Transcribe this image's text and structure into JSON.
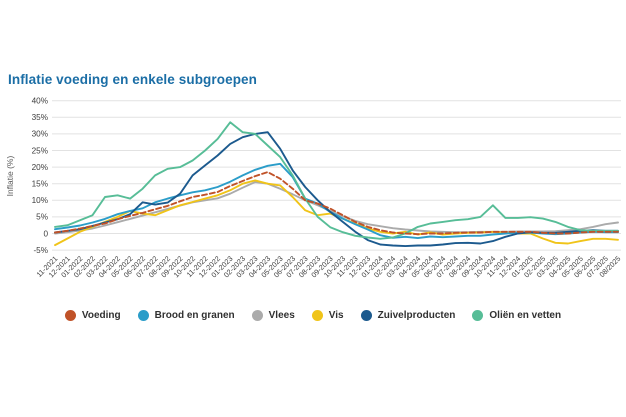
{
  "header": {
    "title": "Inflatie voeding en enkele subgroepen"
  },
  "chart_data": {
    "type": "line",
    "title": "Inflatie voeding en enkele subgroepen",
    "ylabel": "Inflatie (%)",
    "ylim": [
      -5,
      40
    ],
    "ytick_step": 5,
    "yticks": [
      40,
      35,
      30,
      25,
      20,
      15,
      10,
      5,
      0,
      -5
    ],
    "ytick_labels": [
      "40%",
      "35%",
      "30%",
      "25%",
      "20%",
      "15%",
      "10%",
      "5%",
      "0",
      "-5%"
    ],
    "grid": true,
    "legend_position": "bottom",
    "x": [
      "11-2021",
      "12-2021",
      "01-2022",
      "02-2022",
      "03-2022",
      "04-2022",
      "05-2022",
      "06-2022",
      "07-2022",
      "08-2022",
      "09-2022",
      "10-2022",
      "11-2022",
      "12-2022",
      "01-2023",
      "02-2023",
      "03-2023",
      "04-2023",
      "05-2023",
      "06-2023",
      "07-2023",
      "08-2023",
      "09-2023",
      "10-2023",
      "11-2023",
      "12-2023",
      "01-2024",
      "02-2024",
      "03-2024",
      "04-2024",
      "05-2024",
      "06-2024",
      "07-2024",
      "08-2024",
      "09-2024",
      "10-2024",
      "11-2024",
      "12-2024",
      "01-2025",
      "02-2025",
      "03-2025",
      "04-2025",
      "05-2025",
      "06-2025",
      "07-2025",
      "08/2025"
    ],
    "series": [
      {
        "name": "Voeding",
        "color": "#c05228",
        "style": "dashed",
        "values": [
          0.3,
          0.8,
          1.5,
          2.3,
          3.0,
          4.3,
          5.3,
          6.2,
          7.3,
          8.3,
          9.7,
          11.0,
          11.7,
          12.5,
          14.3,
          15.8,
          17.3,
          18.5,
          16.5,
          13.5,
          10.0,
          9.0,
          7.5,
          5.5,
          3.5,
          2.0,
          1.0,
          0.3,
          0.0,
          -0.2,
          0.0,
          0.0,
          0.2,
          0.3,
          0.3,
          0.5,
          0.5,
          0.5,
          0.5,
          0.2,
          0.0,
          0.0,
          0.3,
          0.5,
          0.5,
          0.5
        ]
      },
      {
        "name": "Brood en granen",
        "color": "#2b9dc9",
        "style": "solid",
        "values": [
          1.3,
          1.8,
          2.4,
          3.3,
          4.4,
          5.8,
          6.8,
          7.6,
          9.4,
          10.5,
          11.5,
          12.4,
          13.0,
          14.0,
          15.6,
          17.5,
          19.2,
          20.4,
          21.0,
          17.0,
          10.5,
          9.0,
          6.5,
          4.5,
          2.8,
          1.2,
          -0.5,
          -1.3,
          -1.0,
          -1.4,
          -0.9,
          -1.1,
          -0.9,
          -0.7,
          -0.7,
          -0.3,
          0.0,
          0.2,
          0.3,
          0.0,
          -0.2,
          0.0,
          0.3,
          0.5,
          0.4,
          0.4
        ]
      },
      {
        "name": "Vlees",
        "color": "#ababab",
        "style": "solid",
        "values": [
          0.0,
          0.4,
          0.9,
          1.5,
          2.4,
          3.4,
          4.4,
          5.4,
          6.4,
          7.4,
          8.4,
          9.4,
          10.0,
          10.6,
          12.0,
          13.8,
          15.5,
          15.0,
          13.5,
          11.8,
          10.0,
          8.5,
          6.8,
          5.2,
          3.8,
          2.8,
          2.2,
          1.6,
          1.2,
          0.9,
          0.6,
          0.5,
          0.4,
          0.4,
          0.5,
          0.5,
          0.5,
          0.6,
          0.6,
          0.6,
          0.7,
          1.0,
          1.3,
          2.0,
          2.8,
          3.3
        ]
      },
      {
        "name": "Vis",
        "color": "#f0c419",
        "style": "solid",
        "values": [
          -3.5,
          -1.5,
          0.5,
          2.0,
          3.5,
          5.0,
          6.8,
          6.0,
          5.5,
          7.0,
          8.5,
          9.5,
          10.5,
          11.5,
          13.0,
          15.0,
          16.0,
          15.0,
          14.5,
          11.0,
          7.0,
          5.5,
          6.0,
          4.5,
          3.0,
          1.5,
          0.5,
          0.0,
          0.5,
          -0.3,
          0.3,
          -0.3,
          0.0,
          0.2,
          0.3,
          0.5,
          0.2,
          0.0,
          0.0,
          -1.5,
          -2.8,
          -3.0,
          -2.3,
          -1.6,
          -1.6,
          -1.9
        ]
      },
      {
        "name": "Zuivelproducten",
        "color": "#1c5a8e",
        "style": "solid",
        "values": [
          0.3,
          0.8,
          1.3,
          2.3,
          3.3,
          4.3,
          5.8,
          9.4,
          8.7,
          9.3,
          12.0,
          17.5,
          20.5,
          23.5,
          27.0,
          29.0,
          30.0,
          30.5,
          25.5,
          19.0,
          14.0,
          10.0,
          6.5,
          3.5,
          0.5,
          -2.0,
          -3.3,
          -3.6,
          -3.8,
          -3.6,
          -3.6,
          -3.3,
          -2.9,
          -2.8,
          -3.0,
          -2.3,
          -1.0,
          0.0,
          0.4,
          0.2,
          0.2,
          0.5,
          0.8,
          1.0,
          0.8,
          0.8
        ]
      },
      {
        "name": "Oliën en vetten",
        "color": "#57bd97",
        "style": "solid",
        "values": [
          2.0,
          2.5,
          4.0,
          5.5,
          11.0,
          11.5,
          10.5,
          13.5,
          17.5,
          19.5,
          20.0,
          22.0,
          25.0,
          28.5,
          33.5,
          30.5,
          30.0,
          26.5,
          23.0,
          17.5,
          10.5,
          5.0,
          1.9,
          0.4,
          -0.7,
          -1.2,
          -1.6,
          -1.2,
          0.0,
          2.0,
          3.0,
          3.5,
          4.0,
          4.3,
          5.0,
          8.5,
          4.7,
          4.7,
          4.9,
          4.5,
          3.5,
          2.0,
          1.0,
          0.8,
          0.8,
          0.8
        ]
      }
    ]
  }
}
